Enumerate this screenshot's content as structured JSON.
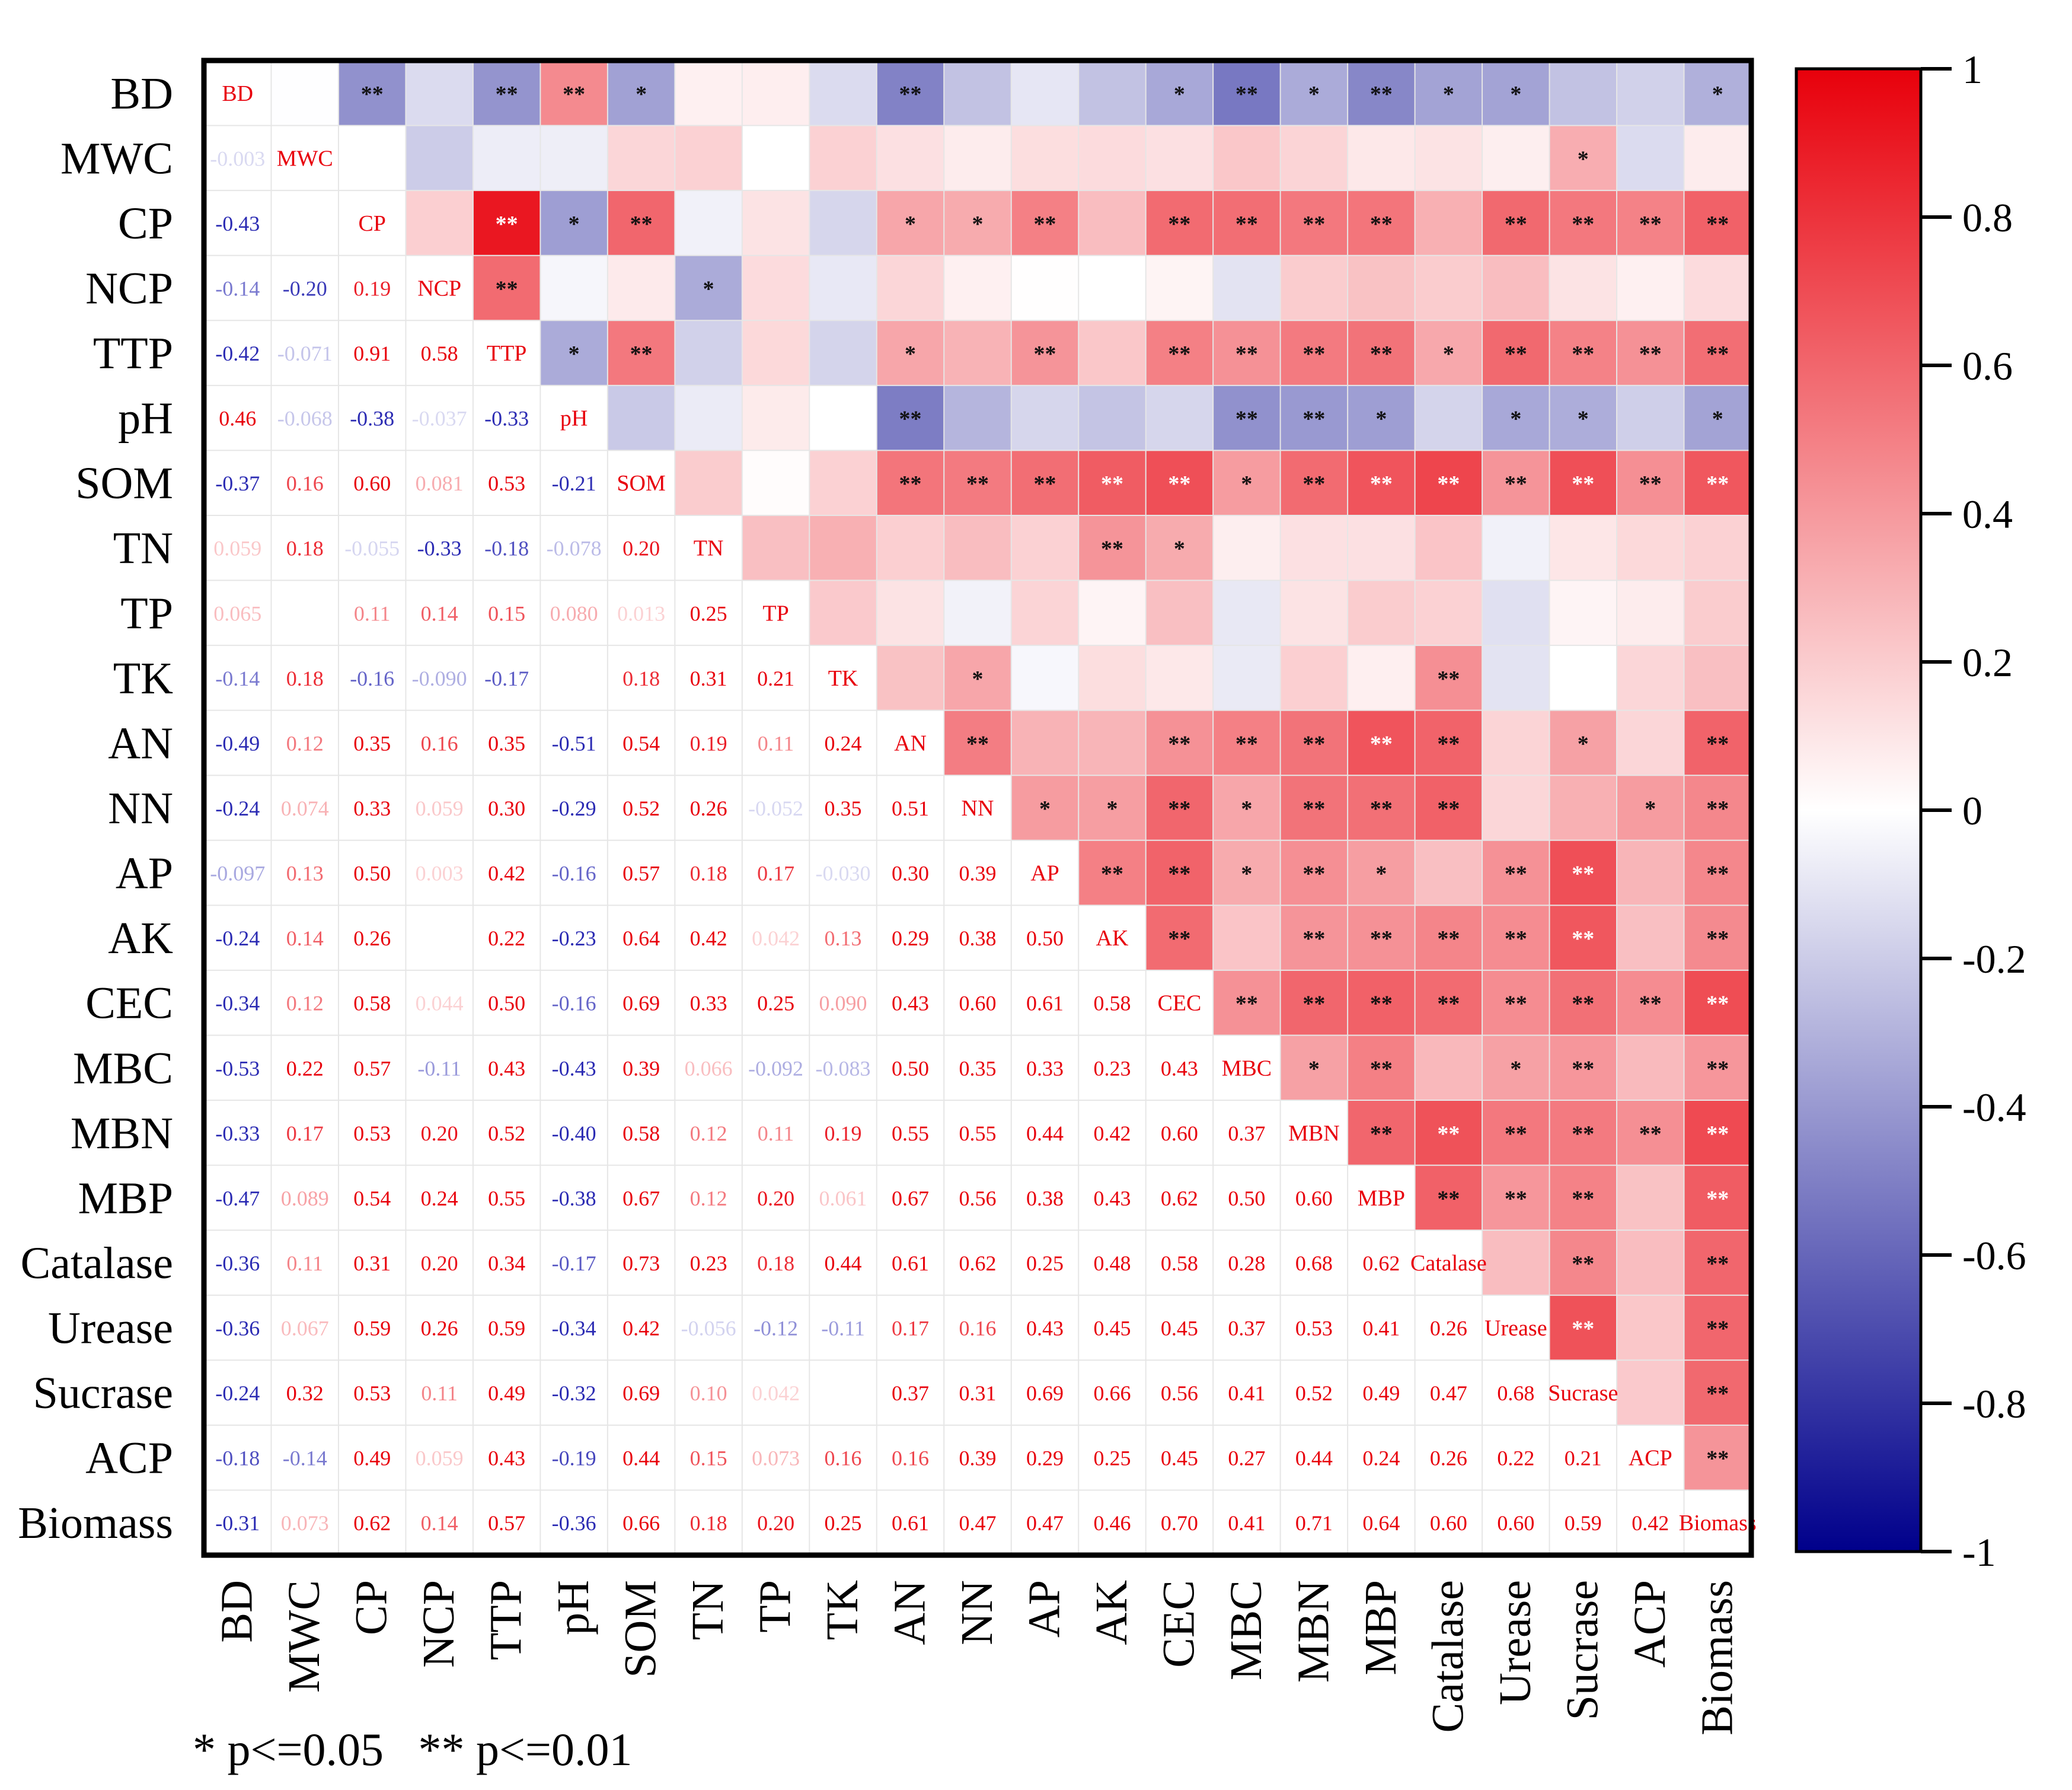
{
  "chart_data": {
    "type": "heatmap",
    "title": "",
    "variables": [
      "BD",
      "MWC",
      "CP",
      "NCP",
      "TTP",
      "pH",
      "SOM",
      "TN",
      "TP",
      "TK",
      "AN",
      "NN",
      "AP",
      "AK",
      "CEC",
      "MBC",
      "MBN",
      "MBP",
      "Catalase",
      "Urease",
      "Sucrase",
      "ACP",
      "Biomass"
    ],
    "lower_values": [
      [],
      [
        -0.003
      ],
      [
        -0.43,
        0.0
      ],
      [
        -0.14,
        -0.2,
        0.19
      ],
      [
        -0.42,
        -0.071,
        0.91,
        0.58
      ],
      [
        0.46,
        -0.068,
        -0.38,
        -0.037,
        -0.33
      ],
      [
        -0.37,
        0.16,
        0.6,
        0.081,
        0.53,
        -0.21
      ],
      [
        0.059,
        0.18,
        -0.055,
        -0.33,
        -0.18,
        -0.078,
        0.2
      ],
      [
        0.065,
        0.0,
        0.11,
        0.14,
        0.15,
        0.08,
        0.013,
        0.25
      ],
      [
        -0.14,
        0.18,
        -0.16,
        -0.09,
        -0.17,
        0.0,
        0.18,
        0.31,
        0.21
      ],
      [
        -0.49,
        0.12,
        0.35,
        0.16,
        0.35,
        -0.51,
        0.54,
        0.19,
        0.11,
        0.24
      ],
      [
        -0.24,
        0.074,
        0.33,
        0.059,
        0.3,
        -0.29,
        0.52,
        0.26,
        -0.052,
        0.35,
        0.51
      ],
      [
        -0.097,
        0.13,
        0.5,
        0.003,
        0.42,
        -0.16,
        0.57,
        0.18,
        0.17,
        -0.03,
        0.3,
        0.39
      ],
      [
        -0.24,
        0.14,
        0.26,
        0.0,
        0.22,
        -0.23,
        0.64,
        0.42,
        0.042,
        0.13,
        0.29,
        0.38,
        0.5
      ],
      [
        -0.34,
        0.12,
        0.58,
        0.044,
        0.5,
        -0.16,
        0.69,
        0.33,
        0.25,
        0.09,
        0.43,
        0.6,
        0.61,
        0.58
      ],
      [
        -0.53,
        0.22,
        0.57,
        -0.11,
        0.43,
        -0.43,
        0.39,
        0.066,
        -0.092,
        -0.083,
        0.5,
        0.35,
        0.33,
        0.23,
        0.43
      ],
      [
        -0.33,
        0.17,
        0.53,
        0.2,
        0.52,
        -0.4,
        0.58,
        0.12,
        0.11,
        0.19,
        0.55,
        0.55,
        0.44,
        0.42,
        0.6,
        0.37
      ],
      [
        -0.47,
        0.089,
        0.54,
        0.24,
        0.55,
        -0.38,
        0.67,
        0.12,
        0.2,
        0.061,
        0.67,
        0.56,
        0.38,
        0.43,
        0.62,
        0.5,
        0.6
      ],
      [
        -0.36,
        0.11,
        0.31,
        0.2,
        0.34,
        -0.17,
        0.73,
        0.23,
        0.18,
        0.44,
        0.61,
        0.62,
        0.25,
        0.48,
        0.58,
        0.28,
        0.68,
        0.62
      ],
      [
        -0.36,
        0.067,
        0.59,
        0.26,
        0.59,
        -0.34,
        0.42,
        -0.056,
        -0.12,
        -0.11,
        0.17,
        0.16,
        0.43,
        0.45,
        0.45,
        0.37,
        0.53,
        0.41,
        0.26
      ],
      [
        -0.24,
        0.32,
        0.53,
        0.11,
        0.49,
        -0.32,
        0.69,
        0.1,
        0.042,
        0.0,
        0.37,
        0.31,
        0.69,
        0.66,
        0.56,
        0.41,
        0.52,
        0.49,
        0.47,
        0.68
      ],
      [
        -0.18,
        -0.14,
        0.49,
        0.059,
        0.43,
        -0.19,
        0.44,
        0.15,
        0.073,
        0.16,
        0.16,
        0.39,
        0.29,
        0.25,
        0.45,
        0.27,
        0.44,
        0.24,
        0.26,
        0.22,
        0.21
      ],
      [
        -0.31,
        0.073,
        0.62,
        0.14,
        0.57,
        -0.36,
        0.66,
        0.18,
        0.2,
        0.25,
        0.61,
        0.47,
        0.47,
        0.46,
        0.7,
        0.41,
        0.71,
        0.64,
        0.6,
        0.6,
        0.59,
        0.42
      ]
    ],
    "lower_labels": [
      [],
      [
        "-0.003"
      ],
      [
        "-0.43",
        ""
      ],
      [
        "-0.14",
        "-0.20",
        "0.19"
      ],
      [
        "-0.42",
        "-0.071",
        "0.91",
        "0.58"
      ],
      [
        "0.46",
        "-0.068",
        "-0.38",
        "-0.037",
        "-0.33"
      ],
      [
        "-0.37",
        "0.16",
        "0.60",
        "0.081",
        "0.53",
        "-0.21"
      ],
      [
        "0.059",
        "0.18",
        "-0.055",
        "-0.33",
        "-0.18",
        "-0.078",
        "0.20"
      ],
      [
        "0.065",
        "",
        "0.11",
        "0.14",
        "0.15",
        "0.080",
        "0.013",
        "0.25"
      ],
      [
        "-0.14",
        "0.18",
        "-0.16",
        "-0.090",
        "-0.17",
        "",
        "0.18",
        "0.31",
        "0.21"
      ],
      [
        "-0.49",
        "0.12",
        "0.35",
        "0.16",
        "0.35",
        "-0.51",
        "0.54",
        "0.19",
        "0.11",
        "0.24"
      ],
      [
        "-0.24",
        "0.074",
        "0.33",
        "0.059",
        "0.30",
        "-0.29",
        "0.52",
        "0.26",
        "-0.052",
        "0.35",
        "0.51"
      ],
      [
        "-0.097",
        "0.13",
        "0.50",
        "0.003",
        "0.42",
        "-0.16",
        "0.57",
        "0.18",
        "0.17",
        "-0.030",
        "0.30",
        "0.39"
      ],
      [
        "-0.24",
        "0.14",
        "0.26",
        "",
        "0.22",
        "-0.23",
        "0.64",
        "0.42",
        "0.042",
        "0.13",
        "0.29",
        "0.38",
        "0.50"
      ],
      [
        "-0.34",
        "0.12",
        "0.58",
        "0.044",
        "0.50",
        "-0.16",
        "0.69",
        "0.33",
        "0.25",
        "0.090",
        "0.43",
        "0.60",
        "0.61",
        "0.58"
      ],
      [
        "-0.53",
        "0.22",
        "0.57",
        "-0.11",
        "0.43",
        "-0.43",
        "0.39",
        "0.066",
        "-0.092",
        "-0.083",
        "0.50",
        "0.35",
        "0.33",
        "0.23",
        "0.43"
      ],
      [
        "-0.33",
        "0.17",
        "0.53",
        "0.20",
        "0.52",
        "-0.40",
        "0.58",
        "0.12",
        "0.11",
        "0.19",
        "0.55",
        "0.55",
        "0.44",
        "0.42",
        "0.60",
        "0.37"
      ],
      [
        "-0.47",
        "0.089",
        "0.54",
        "0.24",
        "0.55",
        "-0.38",
        "0.67",
        "0.12",
        "0.20",
        "0.061",
        "0.67",
        "0.56",
        "0.38",
        "0.43",
        "0.62",
        "0.50",
        "0.60"
      ],
      [
        "-0.36",
        "0.11",
        "0.31",
        "0.20",
        "0.34",
        "-0.17",
        "0.73",
        "0.23",
        "0.18",
        "0.44",
        "0.61",
        "0.62",
        "0.25",
        "0.48",
        "0.58",
        "0.28",
        "0.68",
        "0.62"
      ],
      [
        "-0.36",
        "0.067",
        "0.59",
        "0.26",
        "0.59",
        "-0.34",
        "0.42",
        "-0.056",
        "-0.12",
        "-0.11",
        "0.17",
        "0.16",
        "0.43",
        "0.45",
        "0.45",
        "0.37",
        "0.53",
        "0.41",
        "0.26"
      ],
      [
        "-0.24",
        "0.32",
        "0.53",
        "0.11",
        "0.49",
        "-0.32",
        "0.69",
        "0.10",
        "0.042",
        "",
        "0.37",
        "0.31",
        "0.69",
        "0.66",
        "0.56",
        "0.41",
        "0.52",
        "0.49",
        "0.47",
        "0.68"
      ],
      [
        "-0.18",
        "-0.14",
        "0.49",
        "0.059",
        "0.43",
        "-0.19",
        "0.44",
        "0.15",
        "0.073",
        "0.16",
        "0.16",
        "0.39",
        "0.29",
        "0.25",
        "0.45",
        "0.27",
        "0.44",
        "0.24",
        "0.26",
        "0.22",
        "0.21"
      ],
      [
        "-0.31",
        "0.073",
        "0.62",
        "0.14",
        "0.57",
        "-0.36",
        "0.66",
        "0.18",
        "0.20",
        "0.25",
        "0.61",
        "0.47",
        "0.47",
        "0.46",
        "0.70",
        "0.41",
        "0.71",
        "0.64",
        "0.60",
        "0.60",
        "0.59",
        "0.42"
      ]
    ],
    "significance": [
      [
        "",
        "",
        "**",
        "",
        "**",
        "**",
        "*",
        "",
        "",
        "",
        "**",
        "",
        "",
        "",
        "*",
        "**",
        "*",
        "**",
        "*",
        "*",
        "",
        "",
        "*"
      ],
      [
        "",
        "",
        "",
        "",
        "",
        "",
        "",
        "",
        "",
        "",
        "",
        "",
        "",
        "",
        "",
        "",
        "",
        "",
        "",
        "",
        "*",
        "",
        ""
      ],
      [
        "**",
        "",
        "",
        "",
        "**",
        "*",
        "**",
        "",
        "",
        "",
        "*",
        "*",
        "**",
        "",
        "**",
        "**",
        "**",
        "**",
        "",
        "**",
        "**",
        "**",
        "**"
      ],
      [
        "",
        "",
        "",
        "",
        "**",
        "",
        "",
        "*",
        "",
        "",
        "",
        "",
        "",
        "",
        "",
        "",
        "",
        "",
        "",
        "",
        "",
        "",
        ""
      ],
      [
        "**",
        "",
        "**",
        "**",
        "",
        "*",
        "**",
        "",
        "",
        "",
        "*",
        "",
        "**",
        "",
        "**",
        "**",
        "**",
        "**",
        "*",
        "**",
        "**",
        "**",
        "**"
      ],
      [
        "**",
        "",
        "*",
        "",
        "*",
        "",
        "",
        "",
        "",
        "",
        "**",
        "",
        "",
        "",
        "",
        "**",
        "**",
        "*",
        "",
        "*",
        "*",
        "",
        "*"
      ],
      [
        "*",
        "",
        "**",
        "",
        "**",
        "",
        "",
        "",
        "",
        "",
        "**",
        "**",
        "**",
        "**",
        "**",
        "*",
        "**",
        "**",
        "**",
        "**",
        "**",
        "**",
        "**"
      ],
      [
        "",
        "",
        "",
        "*",
        "",
        "",
        "",
        "",
        "",
        "",
        "",
        "",
        "",
        "**",
        "*",
        "",
        "",
        "",
        "",
        "",
        "",
        "",
        ""
      ],
      [
        "",
        "",
        "",
        "",
        "",
        "",
        "",
        "",
        "",
        "",
        "",
        "",
        "",
        "",
        "",
        "",
        "",
        "",
        "",
        "",
        "",
        "",
        ""
      ],
      [
        "",
        "",
        "",
        "",
        "",
        "",
        "",
        "",
        "",
        "",
        "",
        "*",
        "",
        "",
        "",
        "",
        "",
        "",
        "**",
        "",
        "",
        "",
        ""
      ],
      [
        "**",
        "",
        "*",
        "",
        "*",
        "**",
        "**",
        "",
        "",
        "",
        "",
        "**",
        "",
        "",
        "**",
        "**",
        "**",
        "**",
        "**",
        "",
        "*",
        "",
        "**"
      ],
      [
        "",
        "",
        "*",
        "",
        "",
        "",
        "**",
        "",
        "",
        "*",
        "**",
        "",
        "*",
        "*",
        "**",
        "*",
        "**",
        "**",
        "**",
        "",
        "",
        "*",
        "**"
      ],
      [
        "",
        "",
        "**",
        "",
        "**",
        "",
        "**",
        "",
        "",
        "",
        "",
        "*",
        "",
        "**",
        "**",
        "*",
        "**",
        "*",
        "",
        "**",
        "**",
        "",
        "**"
      ],
      [
        "",
        "",
        "",
        "",
        "",
        "",
        "**",
        "**",
        "",
        "",
        "",
        "*",
        "**",
        "",
        "**",
        "",
        "**",
        "**",
        "**",
        "**",
        "**",
        "",
        "**"
      ],
      [
        "*",
        "",
        "**",
        "",
        "**",
        "",
        "**",
        "*",
        "",
        "",
        "**",
        "**",
        "**",
        "**",
        "",
        "**",
        "**",
        "**",
        "**",
        "**",
        "**",
        "**",
        "**"
      ],
      [
        "**",
        "",
        "**",
        "",
        "**",
        "**",
        "*",
        "",
        "",
        "",
        "**",
        "*",
        "*",
        "",
        "**",
        "",
        "*",
        "**",
        "",
        "*",
        "**",
        "",
        "**"
      ],
      [
        "*",
        "",
        "**",
        "",
        "**",
        "**",
        "**",
        "",
        "",
        "",
        "**",
        "**",
        "**",
        "**",
        "**",
        "*",
        "",
        "**",
        "**",
        "**",
        "**",
        "**",
        "**"
      ],
      [
        "**",
        "",
        "**",
        "",
        "**",
        "*",
        "**",
        "",
        "",
        "",
        "**",
        "**",
        "*",
        "**",
        "**",
        "**",
        "**",
        "",
        "**",
        "**",
        "**",
        "",
        "**"
      ],
      [
        "*",
        "",
        "",
        "",
        "*",
        "",
        "**",
        "",
        "",
        "**",
        "**",
        "**",
        "",
        "**",
        "**",
        "",
        "**",
        "**",
        "",
        "",
        "**",
        "",
        "**"
      ],
      [
        "*",
        "",
        "**",
        "",
        "**",
        "*",
        "**",
        "",
        "",
        "",
        "",
        "",
        "**",
        "**",
        "**",
        "*",
        "**",
        "**",
        "",
        "",
        "**",
        "",
        "**"
      ],
      [
        "",
        "*",
        "**",
        "",
        "**",
        "*",
        "**",
        "",
        "",
        "",
        "*",
        "",
        "**",
        "**",
        "**",
        "**",
        "**",
        "**",
        "**",
        "**",
        "",
        "",
        "**"
      ],
      [
        "",
        "",
        "**",
        "",
        "**",
        "",
        "**",
        "",
        "",
        "",
        "",
        "*",
        "",
        "",
        "**",
        "",
        "**",
        "",
        "",
        "",
        "",
        "",
        "**"
      ],
      [
        "*",
        "",
        "**",
        "",
        "**",
        "*",
        "**",
        "",
        "",
        "",
        "**",
        "**",
        "**",
        "**",
        "**",
        "**",
        "**",
        "**",
        "**",
        "**",
        "**",
        "**",
        ""
      ]
    ],
    "colorscale": {
      "min": -1,
      "max": 1,
      "ticks": [
        1,
        0.8,
        0.6,
        0.4,
        0.2,
        0,
        -0.2,
        -0.4,
        -0.6,
        -0.8,
        -1
      ],
      "tick_labels": [
        "1",
        "0.8",
        "0.6",
        "0.4",
        "0.2",
        "0",
        "-0.2",
        "-0.4",
        "-0.6",
        "-0.8",
        "-1"
      ],
      "colors": {
        "negative": "#00008b",
        "neutral": "#ffffff",
        "positive": "#e8000b"
      }
    },
    "legend_note": "* p<=0.05   ** p<=0.01",
    "xlabel": "",
    "ylabel": ""
  }
}
